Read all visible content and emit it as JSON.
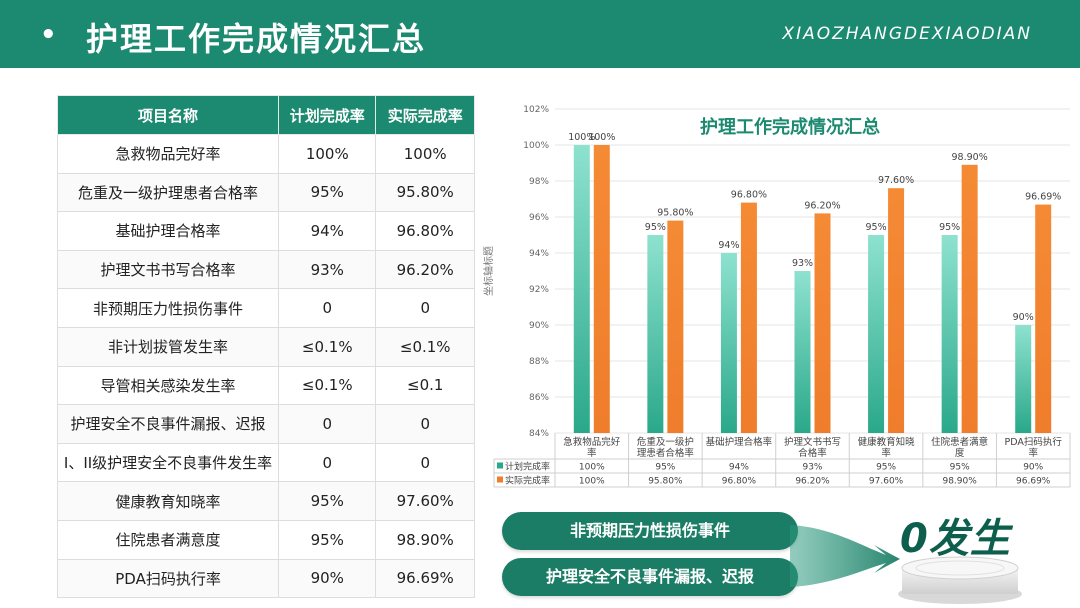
{
  "header": {
    "bullet": "•",
    "title": "护理工作完成情况汇总",
    "subtitle": "XIAOZHANGDEXIAODIAN"
  },
  "colors": {
    "brand": "#1c8a70",
    "plan_bar": "#2aa88a",
    "actual_bar": "#ef7d2b"
  },
  "table": {
    "headers": [
      "项目名称",
      "计划完成率",
      "实际完成率"
    ],
    "rows": [
      [
        "急救物品完好率",
        "100%",
        "100%"
      ],
      [
        "危重及一级护理患者合格率",
        "95%",
        "95.80%"
      ],
      [
        "基础护理合格率",
        "94%",
        "96.80%"
      ],
      [
        "护理文书书写合格率",
        "93%",
        "96.20%"
      ],
      [
        "非预期压力性损伤事件",
        "0",
        "0"
      ],
      [
        "非计划拔管发生率",
        "≤0.1%",
        "≤0.1%"
      ],
      [
        "导管相关感染发生率",
        "≤0.1%",
        "≤0.1"
      ],
      [
        "护理安全不良事件漏报、迟报",
        "0",
        "0"
      ],
      [
        "I、II级护理安全不良事件发生率",
        "0",
        "0"
      ],
      [
        "健康教育知晓率",
        "95%",
        "97.60%"
      ],
      [
        "住院患者满意度",
        "95%",
        "98.90%"
      ],
      [
        "PDA扫码执行率",
        "90%",
        "96.69%"
      ]
    ]
  },
  "chart_data": {
    "type": "bar",
    "title": "护理工作完成情况汇总",
    "ylabel": "坐标轴标题",
    "ylim": [
      84,
      102
    ],
    "yticks": [
      "84%",
      "86%",
      "88%",
      "90%",
      "92%",
      "94%",
      "96%",
      "98%",
      "100%",
      "102%"
    ],
    "categories": [
      [
        "急救物品完好",
        "率"
      ],
      [
        "危重及一级护",
        "理患者合格率"
      ],
      [
        "基础护理合格率"
      ],
      [
        "护理文书书写",
        "合格率"
      ],
      [
        "健康教育知晓",
        "率"
      ],
      [
        "住院患者满意",
        "度"
      ],
      [
        "PDA扫码执行",
        "率"
      ]
    ],
    "series": [
      {
        "name": "计划完成率",
        "values": [
          100,
          95,
          94,
          93,
          95,
          95,
          90
        ],
        "labels": [
          "100%",
          "95%",
          "94%",
          "93%",
          "95%",
          "95%",
          "90%"
        ]
      },
      {
        "name": "实际完成率",
        "values": [
          100,
          95.8,
          96.8,
          96.2,
          97.6,
          98.9,
          96.69
        ],
        "labels": [
          "100%",
          "95.80%",
          "96.80%",
          "96.20%",
          "97.60%",
          "98.90%",
          "96.69%"
        ]
      }
    ],
    "data_table": true,
    "legend": "bottom-table"
  },
  "callouts": {
    "item1": "非预期压力性损伤事件",
    "item2": "护理安全不良事件漏报、迟报",
    "result": "0发生"
  }
}
